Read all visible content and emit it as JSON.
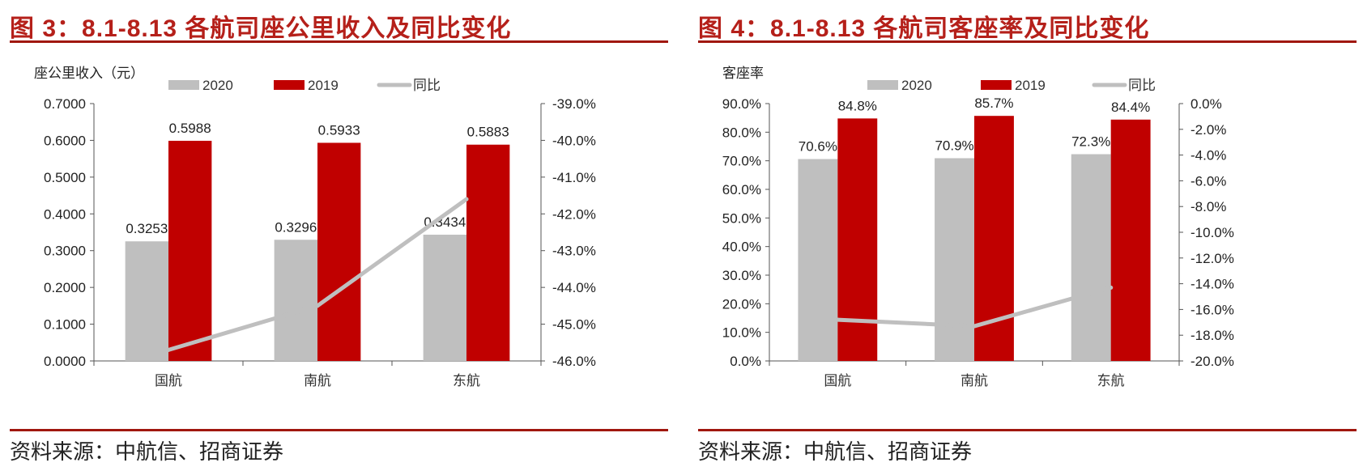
{
  "figures": [
    {
      "title": "图 3：8.1-8.13 各航司座公里收入及同比变化",
      "source": "资料来源：中航信、招商证券"
    },
    {
      "title": "图 4：8.1-8.13 各航司客座率及同比变化",
      "source": "资料来源：中航信、招商证券"
    }
  ],
  "colors": {
    "y2020": "#bfbfbf",
    "y2019": "#c00000",
    "yoy": "#bfbfbf",
    "title": "#b5201a",
    "rule": "#a0170f"
  },
  "chart_data": [
    {
      "type": "bar",
      "title": "图 3：8.1-8.13 各航司座公里收入及同比变化",
      "ylabel": "座公里收入（元）",
      "categories": [
        "国航",
        "南航",
        "东航"
      ],
      "ylim": [
        0,
        0.7
      ],
      "y2lim": [
        -46.0,
        -39.0
      ],
      "yticks": [
        "0.0000",
        "0.1000",
        "0.2000",
        "0.3000",
        "0.4000",
        "0.5000",
        "0.6000",
        "0.7000"
      ],
      "y2ticks": [
        "-46.0%",
        "-45.0%",
        "-44.0%",
        "-43.0%",
        "-42.0%",
        "-41.0%",
        "-40.0%",
        "-39.0%"
      ],
      "legend": "top",
      "grid": false,
      "series": [
        {
          "name": "2020",
          "kind": "bar",
          "axis": "left",
          "values": [
            0.3253,
            0.3296,
            0.3434
          ],
          "labels": [
            "0.3253",
            "0.3296",
            "0.3434"
          ]
        },
        {
          "name": "2019",
          "kind": "bar",
          "axis": "left",
          "values": [
            0.5988,
            0.5933,
            0.5883
          ],
          "labels": [
            "0.5988",
            "0.5933",
            "0.5883"
          ]
        },
        {
          "name": "同比",
          "kind": "line",
          "axis": "right",
          "values": [
            -45.7,
            -44.5,
            -41.6
          ]
        }
      ]
    },
    {
      "type": "bar",
      "title": "图 4：8.1-8.13 各航司客座率及同比变化",
      "ylabel": "客座率",
      "categories": [
        "国航",
        "南航",
        "东航"
      ],
      "ylim": [
        0,
        90
      ],
      "y2lim": [
        -20.0,
        0.0
      ],
      "yticks": [
        "0.0%",
        "10.0%",
        "20.0%",
        "30.0%",
        "40.0%",
        "50.0%",
        "60.0%",
        "70.0%",
        "80.0%",
        "90.0%"
      ],
      "y2ticks": [
        "-20.0%",
        "-18.0%",
        "-16.0%",
        "-14.0%",
        "-12.0%",
        "-10.0%",
        "-8.0%",
        "-6.0%",
        "-4.0%",
        "-2.0%",
        "0.0%"
      ],
      "legend": "top",
      "grid": false,
      "series": [
        {
          "name": "2020",
          "kind": "bar",
          "axis": "left",
          "values": [
            70.6,
            70.9,
            72.3
          ],
          "labels": [
            "70.6%",
            "70.9%",
            "72.3%"
          ]
        },
        {
          "name": "2019",
          "kind": "bar",
          "axis": "left",
          "values": [
            84.8,
            85.7,
            84.4
          ],
          "labels": [
            "84.8%",
            "85.7%",
            "84.4%"
          ]
        },
        {
          "name": "同比",
          "kind": "line",
          "axis": "right",
          "values": [
            -16.8,
            -17.3,
            -14.3
          ]
        }
      ]
    }
  ]
}
